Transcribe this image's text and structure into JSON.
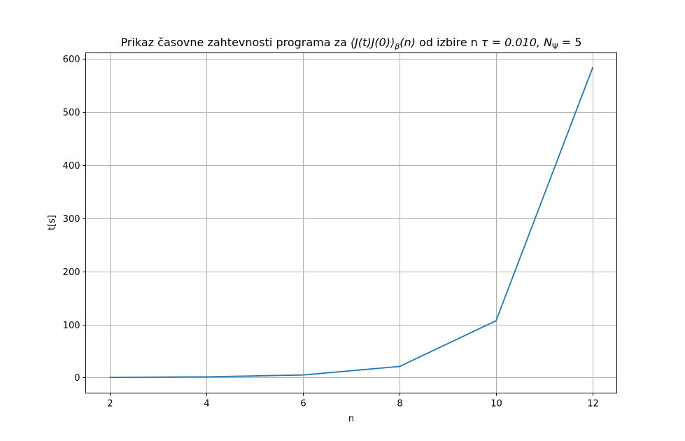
{
  "chart_data": {
    "type": "line",
    "title": {
      "prefix": "Prikaz časovne zahtevnosti programa za ",
      "formula": "⟨J(t)J(0)⟩",
      "formula_sub": "β",
      "formula_suffix": "(n)",
      "middle": " od izbire n ",
      "tau_expr": "τ = 0.010, ",
      "n_psi": "N",
      "n_psi_sub": "Ψ",
      "n_psi_value": " = 5"
    },
    "xlabel": "n",
    "ylabel": "t[s]",
    "xlim": [
      1.5,
      12.5
    ],
    "ylim": [
      -29,
      611
    ],
    "xticks": [
      2,
      4,
      6,
      8,
      10,
      12
    ],
    "yticks": [
      0,
      100,
      200,
      300,
      400,
      500,
      600
    ],
    "grid": true,
    "series": [
      {
        "x": [
          2,
          4,
          6,
          8,
          10,
          12
        ],
        "y": [
          0.5,
          1.5,
          5,
          21,
          107,
          583
        ],
        "color": "#1f77b4"
      }
    ]
  }
}
